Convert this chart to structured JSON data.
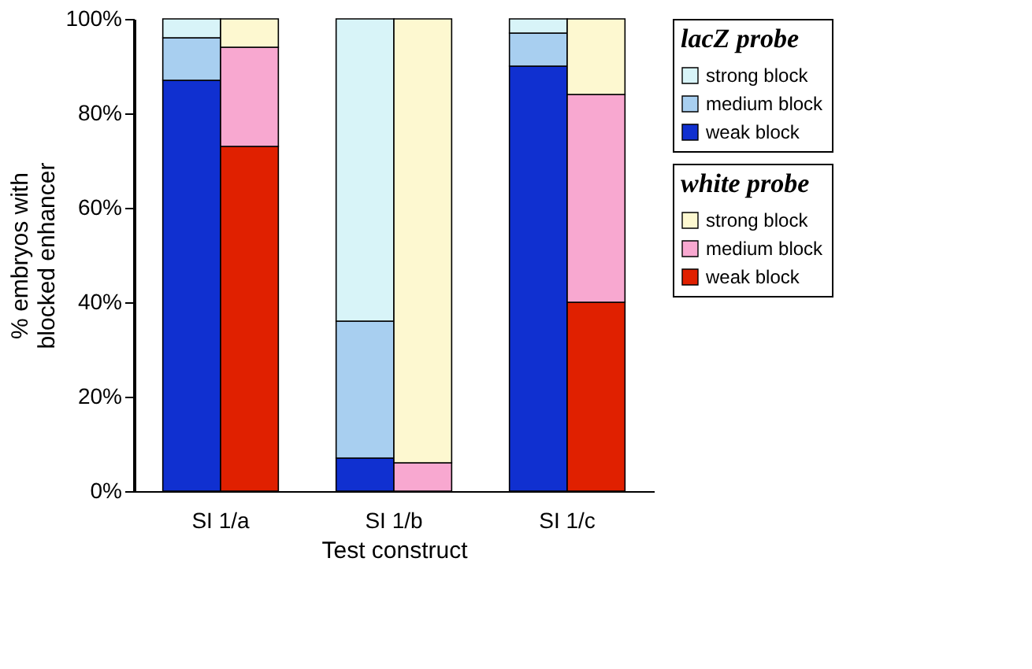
{
  "chart_data": {
    "type": "bar",
    "stacked": true,
    "xlabel": "Test construct",
    "ylabel": "% embryos with\nblocked enhancer",
    "legend_title": [
      "lacZ probe",
      "white probe"
    ],
    "legend": "right",
    "grid": false,
    "categories": [
      "SI 1/a",
      null,
      null,
      "SI 1/b",
      null,
      null,
      "SI 1/c",
      null
    ],
    "ylim": [
      0,
      100
    ],
    "yticks": [
      {
        "value": 0,
        "label": "0%"
      },
      {
        "value": 20,
        "label": "20%"
      },
      {
        "value": 40,
        "label": "40%"
      },
      {
        "value": 60,
        "label": "60%"
      },
      {
        "value": 80,
        "label": "80%"
      },
      {
        "value": 100,
        "label": "100%"
      }
    ],
    "series": [
      {
        "name": "weak block",
        "color": "#1030d0",
        "values": [
          87,
          null,
          null,
          7,
          null,
          null,
          90,
          null
        ]
      },
      {
        "name": "medium block",
        "color": "#a8cff0",
        "values": [
          9,
          null,
          null,
          29,
          null,
          null,
          7,
          null
        ]
      },
      {
        "name": "strong block",
        "color": "#d8f4f8",
        "values": [
          4,
          null,
          null,
          64,
          null,
          null,
          3,
          null
        ]
      },
      {
        "name": "weak block",
        "color": "#e02000",
        "values": [
          null,
          73,
          null,
          null,
          0,
          null,
          null,
          40
        ]
      },
      {
        "name": "medium block",
        "color": "#f8a8d0",
        "values": [
          null,
          21,
          null,
          null,
          6,
          null,
          null,
          44
        ]
      },
      {
        "name": "strong block",
        "color": "#fdf8d0",
        "values": [
          null,
          6,
          null,
          null,
          94,
          null,
          null,
          16
        ]
      }
    ]
  }
}
